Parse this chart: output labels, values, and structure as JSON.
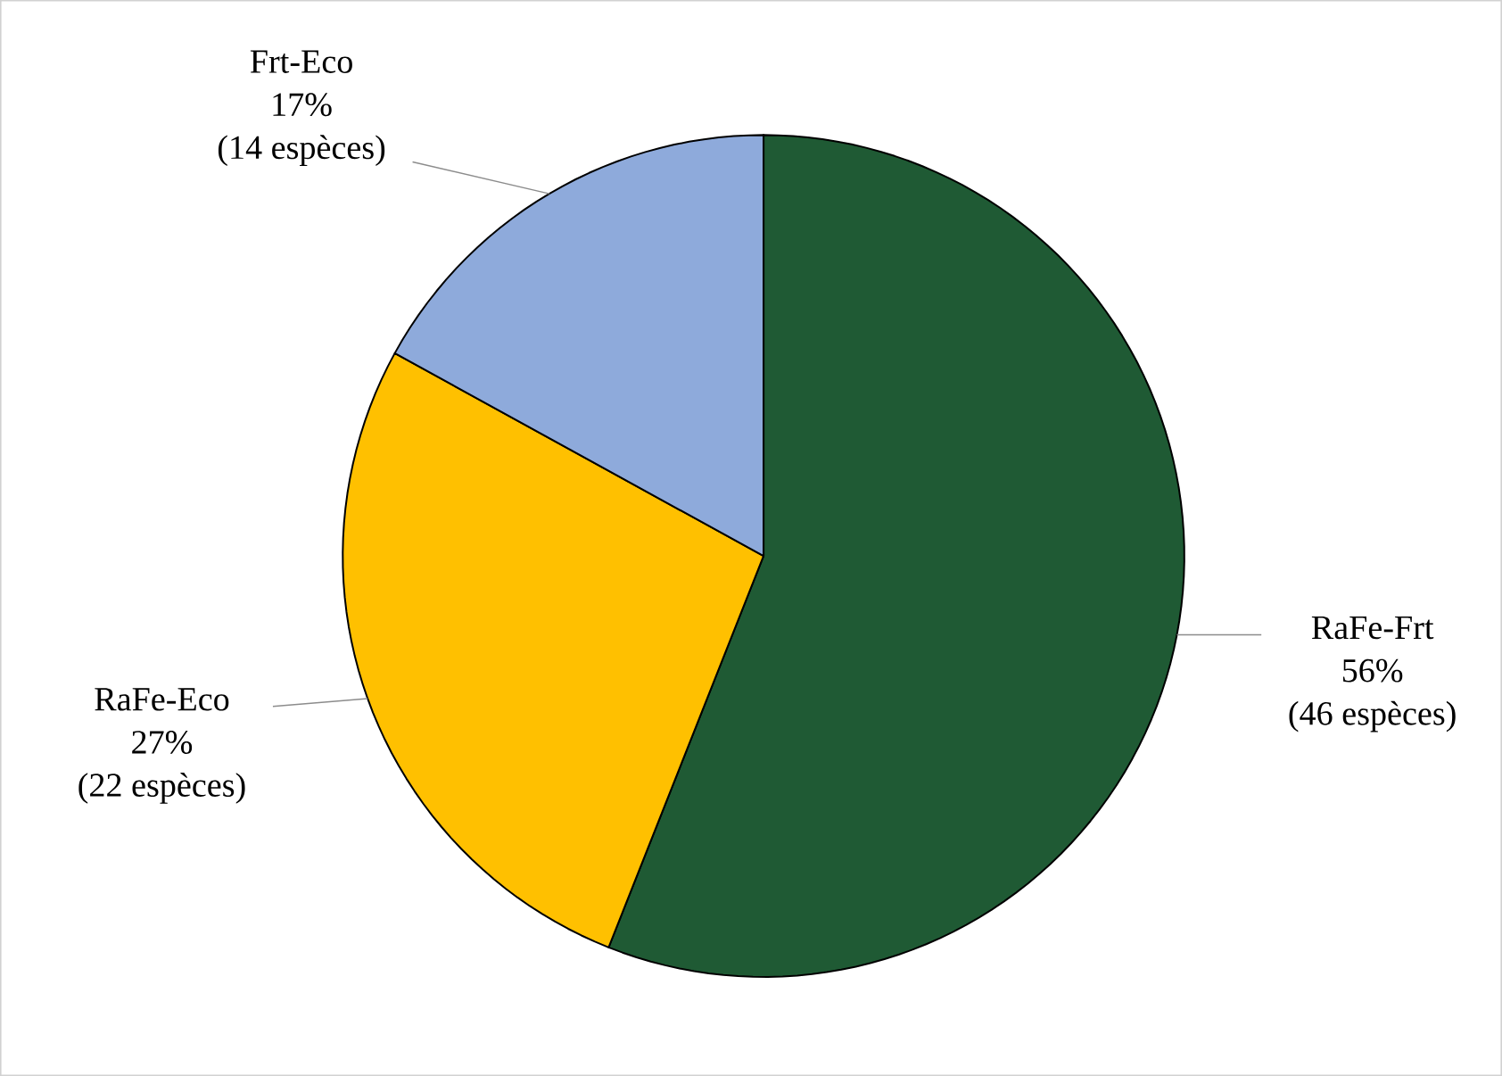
{
  "chart_data": {
    "type": "pie",
    "categories": [
      "RaFe-Frt",
      "RaFe-Eco",
      "Frt-Eco"
    ],
    "values": [
      56,
      27,
      17
    ],
    "colors": [
      "#1f5a34",
      "#ffc000",
      "#8eaadb"
    ],
    "value_labels": [
      "56%",
      "27%",
      "17%"
    ],
    "annotations": [
      "(46 espèces)",
      "(22 espèces)",
      "(14 espèces)"
    ]
  }
}
